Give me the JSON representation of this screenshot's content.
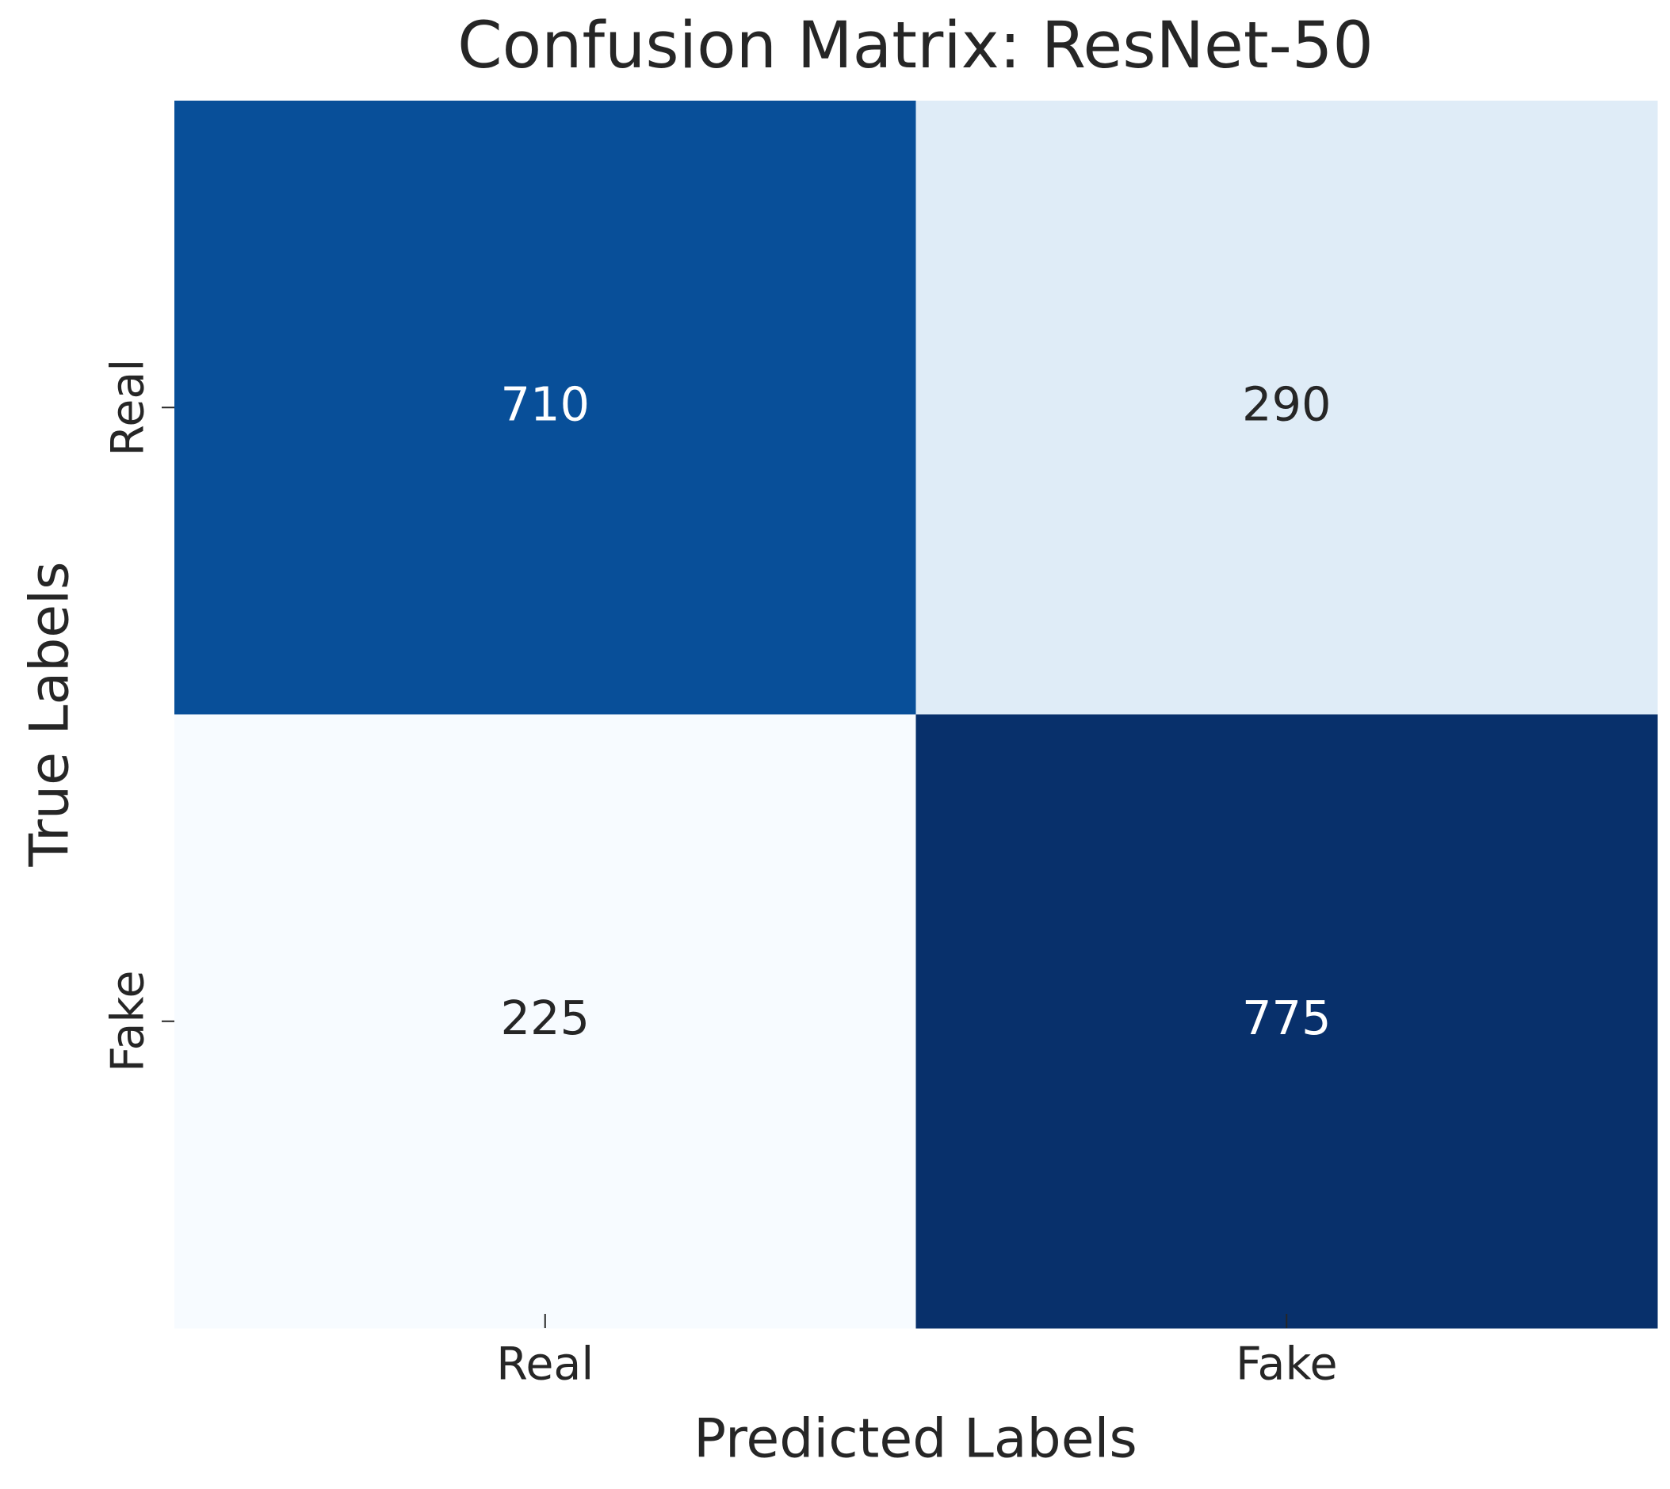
{
  "chart_data": {
    "type": "heatmap",
    "title": "Confusion Matrix: ResNet-50",
    "xlabel": "Predicted Labels",
    "ylabel": "True Labels",
    "x_categories": [
      "Real",
      "Fake"
    ],
    "y_categories": [
      "Real",
      "Fake"
    ],
    "values": [
      [
        710,
        290
      ],
      [
        225,
        775
      ]
    ],
    "colormap": "Blues",
    "annotate": true
  }
}
